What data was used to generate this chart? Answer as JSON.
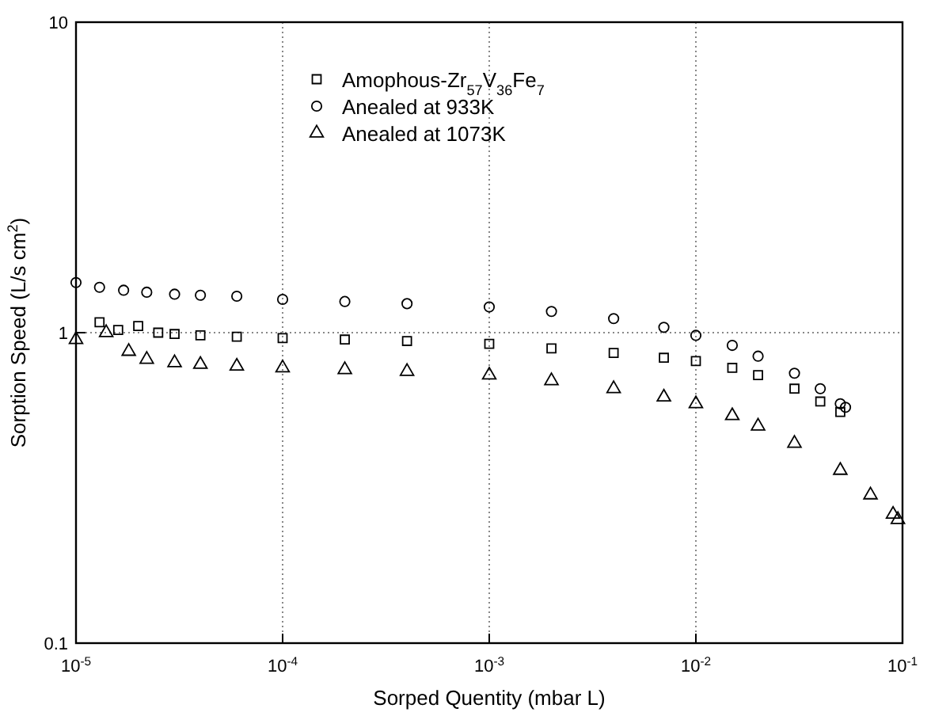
{
  "chart_data": {
    "type": "scatter",
    "xlabel": "Sorped Quentity (mbar L)",
    "ylabel": "Sorption Speed (L/s cm$^{2}$)",
    "log": "xy",
    "grid": true,
    "legend": "top",
    "xlim": [
      1e-05,
      0.1
    ],
    "ylim": [
      0.1,
      10
    ],
    "xticks": [
      {
        "value": 1e-05,
        "label": "10$^{-5}$"
      },
      {
        "value": 0.0001,
        "label": "10$^{-4}$"
      },
      {
        "value": 0.001,
        "label": "10$^{-3}$"
      },
      {
        "value": 0.01,
        "label": "10$^{-2}$"
      },
      {
        "value": 0.1,
        "label": "10$^{-1}$"
      }
    ],
    "yticks": [
      0.1,
      1,
      10
    ],
    "series": [
      {
        "name": "Amophous-Zr$_{57}$V$_{36}$Fe$_{7}$",
        "color": "#000000",
        "marker": "square",
        "x": [
          1.3e-05,
          1.6e-05,
          2e-05,
          2.5e-05,
          3e-05,
          4e-05,
          6e-05,
          0.0001,
          0.0002,
          0.0004,
          0.001,
          0.002,
          0.004,
          0.007,
          0.01,
          0.015,
          0.02,
          0.03,
          0.04,
          0.05
        ],
        "values": [
          1.08,
          1.02,
          1.05,
          1.0,
          0.99,
          0.98,
          0.97,
          0.96,
          0.95,
          0.94,
          0.92,
          0.89,
          0.86,
          0.83,
          0.81,
          0.77,
          0.73,
          0.66,
          0.6,
          0.555
        ]
      },
      {
        "name": "Anealed at 933K",
        "color": "#000000",
        "marker": "circle",
        "x": [
          1e-05,
          1.3e-05,
          1.7e-05,
          2.2e-05,
          3e-05,
          4e-05,
          6e-05,
          0.0001,
          0.0002,
          0.0004,
          0.001,
          0.002,
          0.004,
          0.007,
          0.01,
          0.015,
          0.02,
          0.03,
          0.04,
          0.05,
          0.053
        ],
        "values": [
          1.45,
          1.4,
          1.37,
          1.35,
          1.33,
          1.32,
          1.31,
          1.28,
          1.26,
          1.24,
          1.21,
          1.17,
          1.11,
          1.04,
          0.98,
          0.91,
          0.84,
          0.74,
          0.66,
          0.59,
          0.575
        ]
      },
      {
        "name": "Anealed at 1073K",
        "color": "#000000",
        "marker": "triangle",
        "x": [
          1e-05,
          1.4e-05,
          1.8e-05,
          2.2e-05,
          3e-05,
          4e-05,
          6e-05,
          0.0001,
          0.0002,
          0.0004,
          0.001,
          0.002,
          0.004,
          0.007,
          0.01,
          0.015,
          0.02,
          0.03,
          0.05,
          0.07,
          0.09,
          0.095
        ],
        "values": [
          0.95,
          1.0,
          0.87,
          0.82,
          0.8,
          0.79,
          0.78,
          0.77,
          0.76,
          0.75,
          0.73,
          0.7,
          0.66,
          0.62,
          0.59,
          0.54,
          0.5,
          0.44,
          0.36,
          0.3,
          0.26,
          0.25
        ]
      }
    ]
  }
}
